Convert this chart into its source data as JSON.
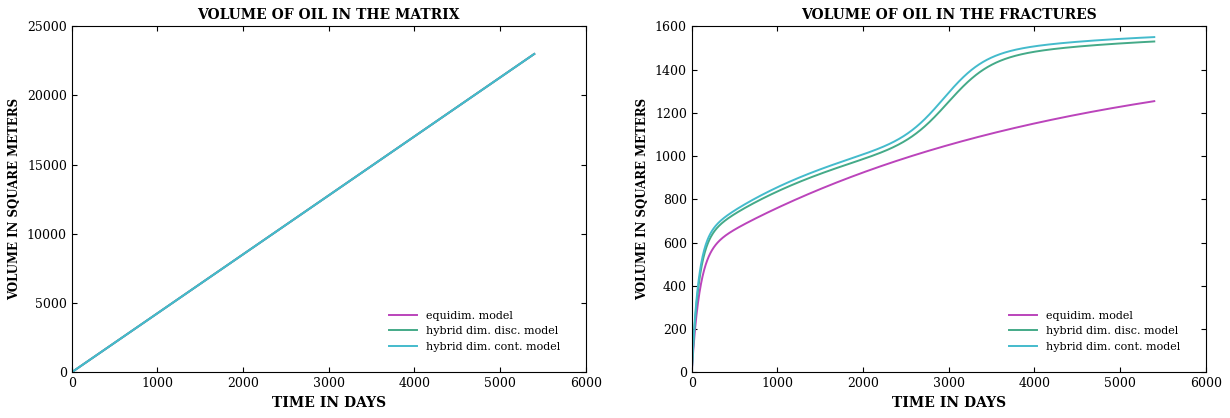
{
  "title_left": "VOLUME OF OIL IN THE MATRIX",
  "title_right": "VOLUME OF OIL IN THE FRACTURES",
  "xlabel": "TIME IN DAYS",
  "ylabel_left": "VOLUME IN SQUARE METERS",
  "ylabel_right": "VOLUME IN SQUARE METERS",
  "xlim_left": [
    0,
    6000
  ],
  "xlim_right": [
    0,
    6000
  ],
  "ylim_left": [
    0,
    25000
  ],
  "ylim_right": [
    0,
    1600
  ],
  "xticks_left": [
    0,
    1000,
    2000,
    3000,
    4000,
    5000,
    6000
  ],
  "xticks_right": [
    0,
    1000,
    2000,
    3000,
    4000,
    5000,
    6000
  ],
  "yticks_left": [
    0,
    5000,
    10000,
    15000,
    20000,
    25000
  ],
  "yticks_right": [
    0,
    200,
    400,
    600,
    800,
    1000,
    1200,
    1400,
    1600
  ],
  "color_equidim": "#bb44bb",
  "color_hybrid_disc": "#44aa88",
  "color_hybrid_cont": "#44bbcc",
  "legend_labels": [
    "equidim. model",
    "hybrid dim. disc. model",
    "hybrid dim. cont. model"
  ],
  "bg_color": "#ffffff",
  "linewidth": 1.4
}
